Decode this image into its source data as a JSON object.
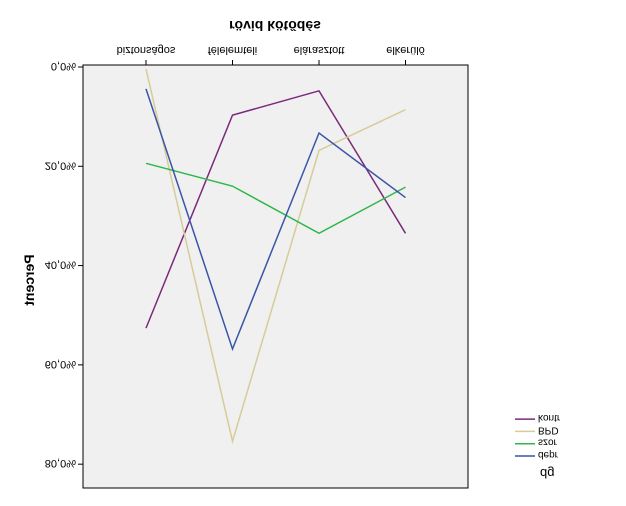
{
  "chart_data": {
    "type": "line",
    "x_label": "rövid kötődés",
    "y_label": "Percent",
    "legend_title": "dg",
    "categories": [
      "biztonságos",
      "félelemteli",
      "elárasztott",
      "elkerülő"
    ],
    "series": [
      {
        "name": "kontr",
        "color": "#7b2a7b",
        "values": [
          52.6,
          9.7,
          4.8,
          33.5
        ]
      },
      {
        "name": "BPD",
        "color": "#d6cc98",
        "values": [
          0.4,
          75.4,
          16.8,
          8.6
        ]
      },
      {
        "name": "szor",
        "color": "#2fb84a",
        "values": [
          19.4,
          24.0,
          33.5,
          24.2
        ]
      },
      {
        "name": "depr",
        "color": "#3a55a8",
        "values": [
          4.4,
          56.8,
          13.3,
          26.3
        ]
      }
    ],
    "ylim": [
      -0.4,
      84.8
    ],
    "yticks": [
      {
        "value": 0,
        "label": "0,0%"
      },
      {
        "value": 20,
        "label": "20,0%"
      },
      {
        "value": 40,
        "label": "40,0%"
      },
      {
        "value": 60,
        "label": "60,0%"
      },
      {
        "value": 80,
        "label": "80,0%"
      }
    ],
    "legend": "right",
    "flipped": "vertical"
  }
}
